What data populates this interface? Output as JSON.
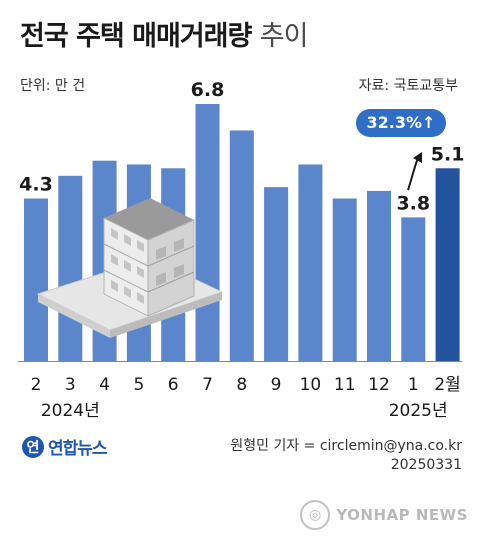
{
  "header": {
    "title_bold": "전국 주택 매매거래량",
    "title_light": "추이",
    "unit": "단위: 만 건",
    "source": "자료: 국토교통부"
  },
  "chart_data": {
    "type": "bar",
    "categories": [
      "2",
      "3",
      "4",
      "5",
      "6",
      "7",
      "8",
      "9",
      "10",
      "11",
      "12",
      "1",
      "2월"
    ],
    "values": [
      4.3,
      4.9,
      5.3,
      5.2,
      5.1,
      6.8,
      6.1,
      4.6,
      5.2,
      4.3,
      4.5,
      3.8,
      5.1
    ],
    "data_labels": [
      {
        "index": 0,
        "text": "4.3"
      },
      {
        "index": 5,
        "text": "6.8"
      },
      {
        "index": 11,
        "text": "3.8"
      },
      {
        "index": 12,
        "text": "5.1"
      }
    ],
    "year_labels": [
      {
        "text": "2024년",
        "anchor_index": 1
      },
      {
        "text": "2025년",
        "anchor_index": 12
      }
    ],
    "highlight_index": 12,
    "badge": "32.3%↑",
    "ylim": [
      0,
      7.2
    ],
    "colors": {
      "bar": "#5b86cb",
      "highlight": "#24539d",
      "badge": "#2f6ec4"
    }
  },
  "footer": {
    "logo_mark": "연",
    "logo": "연합뉴스",
    "credit": "원형민 기자 = circlemin@yna.co.kr",
    "date": "20250331",
    "watermark": "YONHAP NEWS"
  }
}
